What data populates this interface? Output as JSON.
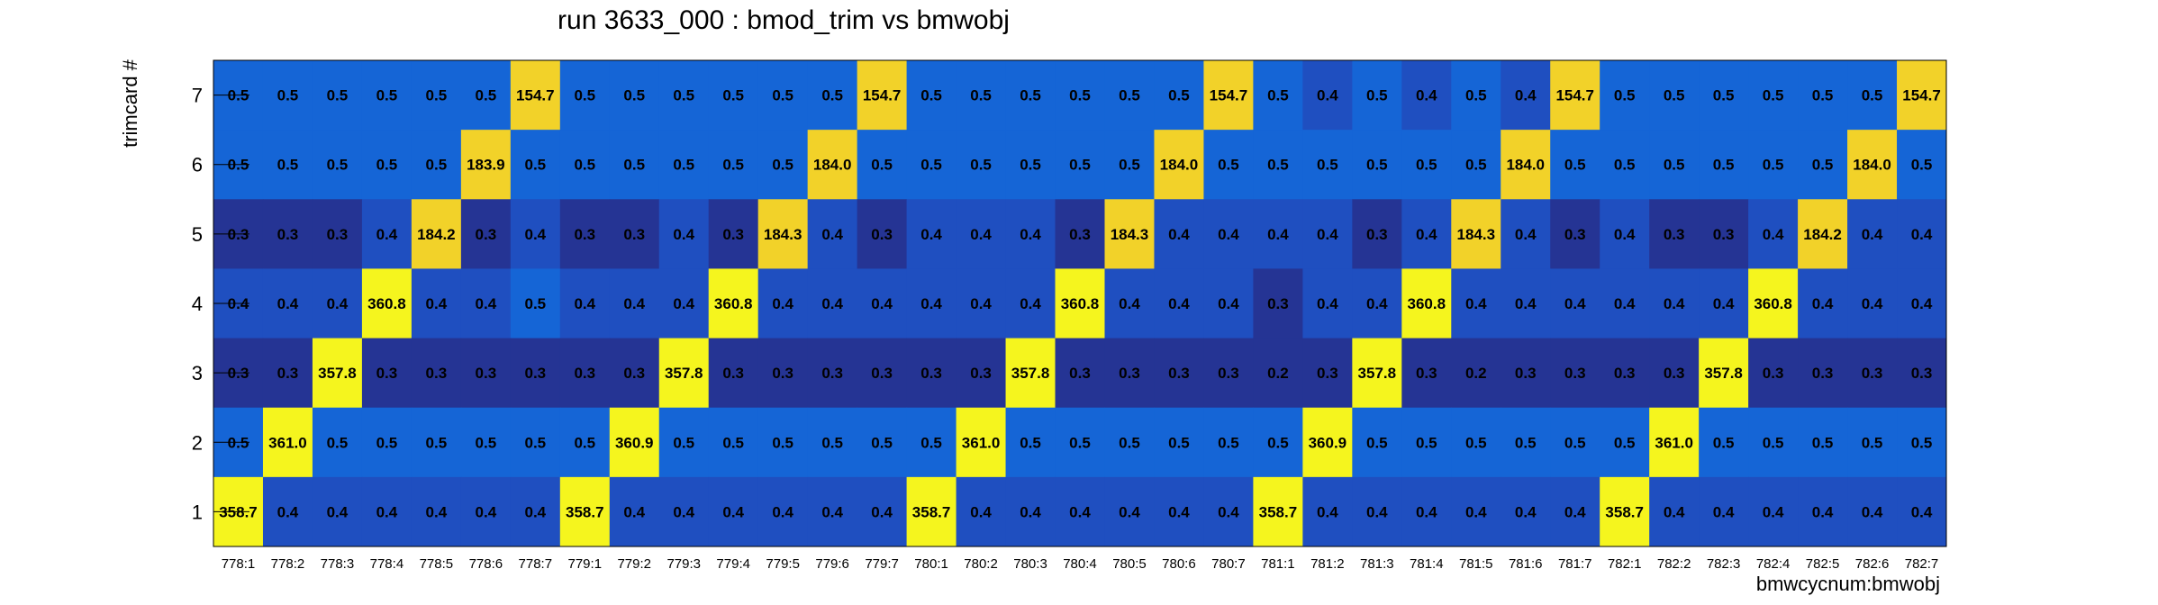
{
  "chart_data": {
    "type": "heatmap",
    "title": "run 3633_000 : bmod_trim vs bmwobj",
    "xlabel": "bmwcycnum:bmwobj",
    "ylabel": "trimcard #",
    "x_categories": [
      "778:1",
      "778:2",
      "778:3",
      "778:4",
      "778:5",
      "778:6",
      "778:7",
      "779:1",
      "779:2",
      "779:3",
      "779:4",
      "779:5",
      "779:6",
      "779:7",
      "780:1",
      "780:2",
      "780:3",
      "780:4",
      "780:5",
      "780:6",
      "780:7",
      "781:1",
      "781:2",
      "781:3",
      "781:4",
      "781:5",
      "781:6",
      "781:7",
      "782:1",
      "782:2",
      "782:3",
      "782:4",
      "782:5",
      "782:6",
      "782:7"
    ],
    "y_categories": [
      "1",
      "2",
      "3",
      "4",
      "5",
      "6",
      "7"
    ],
    "rows": [
      {
        "y": "7",
        "values": [
          "0.5",
          "0.5",
          "0.5",
          "0.5",
          "0.5",
          "0.5",
          "154.7",
          "0.5",
          "0.5",
          "0.5",
          "0.5",
          "0.5",
          "0.5",
          "154.7",
          "0.5",
          "0.5",
          "0.5",
          "0.5",
          "0.5",
          "0.5",
          "154.7",
          "0.5",
          "0.4",
          "0.5",
          "0.4",
          "0.5",
          "0.4",
          "154.7",
          "0.5",
          "0.5",
          "0.5",
          "0.5",
          "0.5",
          "0.5",
          "154.7"
        ]
      },
      {
        "y": "6",
        "values": [
          "0.5",
          "0.5",
          "0.5",
          "0.5",
          "0.5",
          "183.9",
          "0.5",
          "0.5",
          "0.5",
          "0.5",
          "0.5",
          "0.5",
          "184.0",
          "0.5",
          "0.5",
          "0.5",
          "0.5",
          "0.5",
          "0.5",
          "184.0",
          "0.5",
          "0.5",
          "0.5",
          "0.5",
          "0.5",
          "0.5",
          "184.0",
          "0.5",
          "0.5",
          "0.5",
          "0.5",
          "0.5",
          "0.5",
          "184.0",
          "0.5"
        ]
      },
      {
        "y": "5",
        "values": [
          "0.3",
          "0.3",
          "0.3",
          "0.4",
          "184.2",
          "0.3",
          "0.4",
          "0.3",
          "0.3",
          "0.4",
          "0.3",
          "184.3",
          "0.4",
          "0.3",
          "0.4",
          "0.4",
          "0.4",
          "0.3",
          "184.3",
          "0.4",
          "0.4",
          "0.4",
          "0.4",
          "0.3",
          "0.4",
          "184.3",
          "0.4",
          "0.3",
          "0.4",
          "0.3",
          "0.3",
          "0.4",
          "184.2",
          "0.4",
          "0.4"
        ]
      },
      {
        "y": "4",
        "values": [
          "0.4",
          "0.4",
          "0.4",
          "360.8",
          "0.4",
          "0.4",
          "0.5",
          "0.4",
          "0.4",
          "0.4",
          "360.8",
          "0.4",
          "0.4",
          "0.4",
          "0.4",
          "0.4",
          "0.4",
          "360.8",
          "0.4",
          "0.4",
          "0.4",
          "0.3",
          "0.4",
          "0.4",
          "360.8",
          "0.4",
          "0.4",
          "0.4",
          "0.4",
          "0.4",
          "0.4",
          "360.8",
          "0.4",
          "0.4",
          "0.4"
        ]
      },
      {
        "y": "3",
        "values": [
          "0.3",
          "0.3",
          "357.8",
          "0.3",
          "0.3",
          "0.3",
          "0.3",
          "0.3",
          "0.3",
          "357.8",
          "0.3",
          "0.3",
          "0.3",
          "0.3",
          "0.3",
          "0.3",
          "357.8",
          "0.3",
          "0.3",
          "0.3",
          "0.3",
          "0.2",
          "0.3",
          "357.8",
          "0.3",
          "0.2",
          "0.3",
          "0.3",
          "0.3",
          "0.3",
          "357.8",
          "0.3",
          "0.3",
          "0.3",
          "0.3"
        ]
      },
      {
        "y": "2",
        "values": [
          "0.5",
          "361.0",
          "0.5",
          "0.5",
          "0.5",
          "0.5",
          "0.5",
          "0.5",
          "360.9",
          "0.5",
          "0.5",
          "0.5",
          "0.5",
          "0.5",
          "0.5",
          "361.0",
          "0.5",
          "0.5",
          "0.5",
          "0.5",
          "0.5",
          "0.5",
          "360.9",
          "0.5",
          "0.5",
          "0.5",
          "0.5",
          "0.5",
          "0.5",
          "361.0",
          "0.5",
          "0.5",
          "0.5",
          "0.5",
          "0.5"
        ]
      },
      {
        "y": "1",
        "values": [
          "358.7",
          "0.4",
          "0.4",
          "0.4",
          "0.4",
          "0.4",
          "0.4",
          "358.7",
          "0.4",
          "0.4",
          "0.4",
          "0.4",
          "0.4",
          "0.4",
          "358.7",
          "0.4",
          "0.4",
          "0.4",
          "0.4",
          "0.4",
          "0.4",
          "358.7",
          "0.4",
          "0.4",
          "0.4",
          "0.4",
          "0.4",
          "0.4",
          "358.7",
          "0.4",
          "0.4",
          "0.4",
          "0.4",
          "0.4",
          "0.4"
        ]
      }
    ],
    "colors": {
      "low": "#253494",
      "mid_low": "#1f4fc0",
      "mid": "#1565d6",
      "hot_low": "#f2d229",
      "hot_high": "#f5f51e"
    },
    "grid": false,
    "legend": "none"
  }
}
